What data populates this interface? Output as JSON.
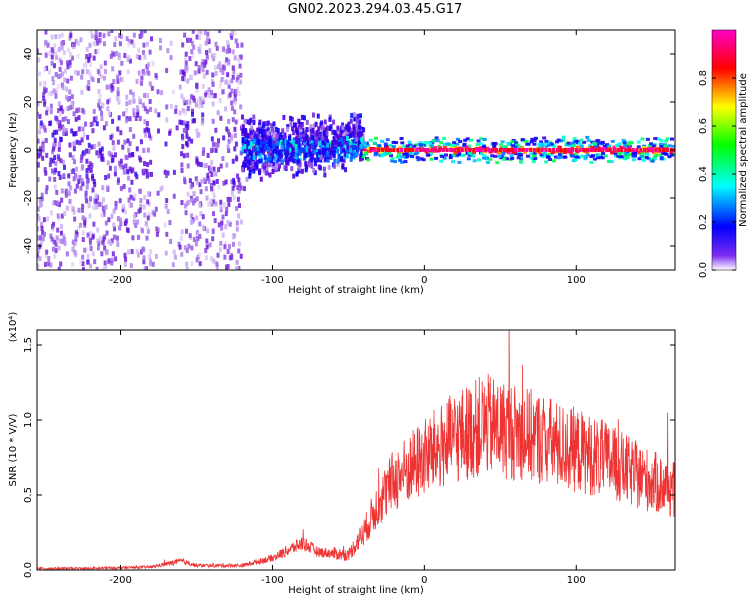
{
  "title": "GN02.2023.294.03.45.G17",
  "chart_data": [
    {
      "type": "heatmap",
      "xlabel": "Height of straight line (km)",
      "ylabel": "Frequency (Hz)",
      "xlim": [
        -255,
        165
      ],
      "ylim": [
        -50,
        50
      ],
      "xticks": [
        -200,
        -100,
        0,
        100
      ],
      "xtick_labels": [
        "-200",
        "-100",
        "0",
        "100"
      ],
      "yticks": [
        -40,
        -20,
        0,
        20,
        40
      ],
      "ytick_labels": [
        "-40",
        "-20",
        "0",
        "20",
        "40"
      ],
      "colorbar": {
        "label": "Normalized spectral amplitude",
        "range": [
          0,
          1
        ],
        "ticks": [
          0.0,
          0.2,
          0.4,
          0.6,
          0.8
        ],
        "tick_labels": [
          "0.0",
          "0.2",
          "0.4",
          "0.6",
          "0.8"
        ],
        "colormap": [
          "#ffffff",
          "#5b00d6",
          "#0000ff",
          "#00ffff",
          "#00ff00",
          "#ffff00",
          "#ff0000",
          "#ff00c8"
        ]
      },
      "regions": [
        {
          "x": [
            -255,
            -120
          ],
          "freq_center": 0,
          "freq_halfwidth": 50,
          "amplitude": 0.1
        },
        {
          "x": [
            -120,
            -40
          ],
          "freq_center": 0,
          "freq_halfwidth": 18,
          "amplitude": 0.3
        },
        {
          "x": [
            -40,
            165
          ],
          "freq_center": 0,
          "freq_halfwidth": 4,
          "amplitude": 0.95
        }
      ],
      "grid": false
    },
    {
      "type": "line",
      "xlabel": "Height of straight line (km)",
      "ylabel": "SNR (10 * V/V)",
      "y_multiplier": "(x10⁴)",
      "xlim": [
        -255,
        165
      ],
      "ylim": [
        0,
        1.6
      ],
      "xticks": [
        -200,
        -100,
        0,
        100
      ],
      "xtick_labels": [
        "-200",
        "-100",
        "0",
        "100"
      ],
      "yticks": [
        0.0,
        0.5,
        1.0,
        1.5
      ],
      "ytick_labels": [
        "0.0",
        "0.5",
        "1.0",
        "1.5"
      ],
      "color": "#ee3333",
      "series": [
        {
          "x": [
            -255,
            -220,
            -180,
            -160,
            -150,
            -120,
            -100,
            -80,
            -70,
            -50,
            -40,
            -30,
            -20,
            0,
            20,
            40,
            60,
            80,
            90,
            100,
            120,
            140,
            165
          ],
          "y": [
            0.01,
            0.01,
            0.02,
            0.06,
            0.03,
            0.03,
            0.08,
            0.18,
            0.12,
            0.1,
            0.25,
            0.45,
            0.6,
            0.75,
            0.88,
            0.97,
            0.92,
            0.87,
            0.82,
            0.8,
            0.73,
            0.63,
            0.53
          ]
        }
      ],
      "grid": false
    }
  ]
}
